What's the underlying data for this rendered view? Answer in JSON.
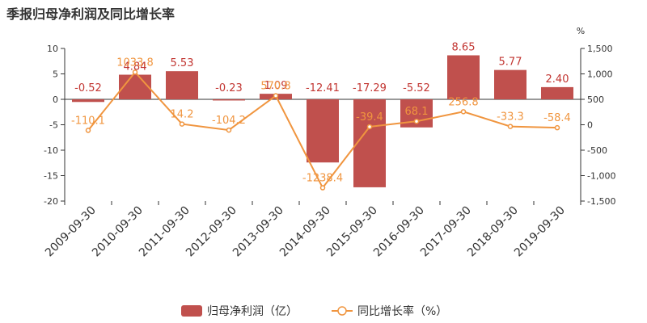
{
  "title": "季报归母净利润及同比增长率",
  "colors": {
    "bar": "#c0504d",
    "bar_label": "#c23531",
    "line": "#f0953f"
  },
  "chart_data": {
    "type": "bar",
    "categories": [
      "2009-09-30",
      "2010-09-30",
      "2011-09-30",
      "2012-09-30",
      "2013-09-30",
      "2014-09-30",
      "2015-09-30",
      "2016-09-30",
      "2017-09-30",
      "2018-09-30",
      "2019-09-30"
    ],
    "series": [
      {
        "name": "归母净利润（亿）",
        "type": "bar",
        "axis": "left",
        "values": [
          -0.52,
          4.84,
          5.53,
          -0.23,
          1.09,
          -12.41,
          -17.29,
          -5.52,
          8.65,
          5.77,
          2.4
        ],
        "labels": [
          "-0.52",
          "4.84",
          "5.53",
          "-0.23",
          "1.09",
          "-12.41",
          "-17.29",
          "-5.52",
          "8.65",
          "5.77",
          "2.40"
        ]
      },
      {
        "name": "同比增长率（%）",
        "type": "line",
        "axis": "right",
        "values": [
          -110.1,
          1033.8,
          14.2,
          -104.2,
          570.8,
          -1238.4,
          -39.4,
          68.1,
          256.8,
          -33.3,
          -58.4
        ],
        "labels": [
          "-110.1",
          "1033.8",
          "14.2",
          "-104.2",
          "570.8",
          "-1238.4",
          "-39.4",
          "68.1",
          "256.8",
          "-33.3",
          "-58.4"
        ]
      }
    ],
    "y_left": {
      "ylim": [
        -20,
        10
      ],
      "ticks": [
        "10",
        "5",
        "0",
        "-5",
        "-10",
        "-15",
        "-20"
      ]
    },
    "y_right": {
      "unit": "%",
      "ylim": [
        -1500,
        1500
      ],
      "ticks": [
        "1,500",
        "1,000",
        "500",
        "0",
        "-500",
        "-1,000",
        "-1,500"
      ]
    },
    "legend": {
      "position": "bottom-center",
      "items": [
        "归母净利润（亿）",
        "同比增长率（%）"
      ]
    },
    "grid": false
  }
}
